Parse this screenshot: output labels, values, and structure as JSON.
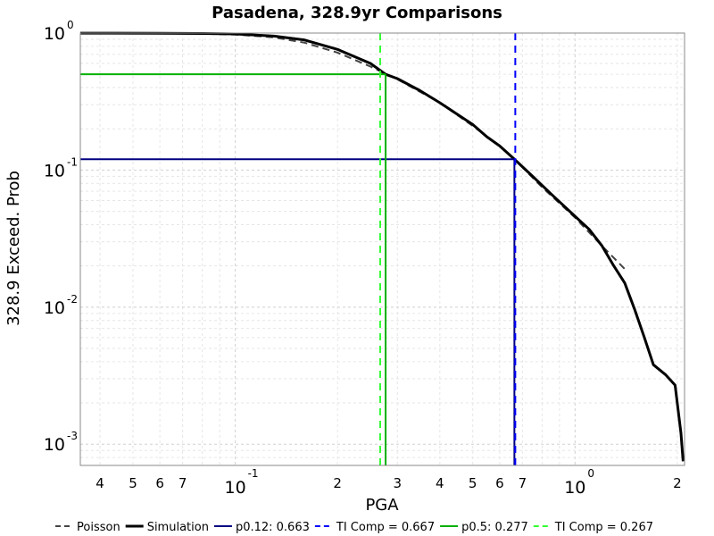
{
  "chart_data": {
    "type": "line",
    "title": "Pasadena, 328.9yr Comparisons",
    "xlabel": "PGA",
    "ylabel": "328.9 Exceed. Prob",
    "xscale": "log",
    "yscale": "log",
    "xlim": [
      0.035,
      2.1
    ],
    "ylim": [
      0.0007,
      1.0
    ],
    "grid": true,
    "legend_position": "bottom",
    "x_tick_labels": [
      {
        "value": 0.04,
        "label": "4"
      },
      {
        "value": 0.05,
        "label": "5"
      },
      {
        "value": 0.06,
        "label": "6"
      },
      {
        "value": 0.07,
        "label": "7"
      },
      {
        "value": 0.1,
        "label": "10",
        "exp": "-1"
      },
      {
        "value": 0.2,
        "label": "2"
      },
      {
        "value": 0.3,
        "label": "3"
      },
      {
        "value": 0.4,
        "label": "4"
      },
      {
        "value": 0.5,
        "label": "5"
      },
      {
        "value": 0.6,
        "label": "6"
      },
      {
        "value": 0.7,
        "label": "7"
      },
      {
        "value": 1.0,
        "label": "10",
        "exp": "0"
      },
      {
        "value": 2.0,
        "label": "2"
      }
    ],
    "y_tick_labels": [
      {
        "value": 1.0,
        "label": "10",
        "exp": "0"
      },
      {
        "value": 0.1,
        "label": "10",
        "exp": "-1"
      },
      {
        "value": 0.01,
        "label": "10",
        "exp": "-2"
      },
      {
        "value": 0.001,
        "label": "10",
        "exp": "-3"
      }
    ],
    "series": [
      {
        "name": "Poisson",
        "color": "#444444",
        "style": "dashed",
        "points": [
          [
            0.035,
            0.999
          ],
          [
            0.06,
            0.996
          ],
          [
            0.08,
            0.99
          ],
          [
            0.1,
            0.975
          ],
          [
            0.13,
            0.93
          ],
          [
            0.16,
            0.85
          ],
          [
            0.2,
            0.72
          ],
          [
            0.25,
            0.57
          ],
          [
            0.3,
            0.46
          ],
          [
            0.4,
            0.31
          ],
          [
            0.5,
            0.21
          ],
          [
            0.6,
            0.15
          ],
          [
            0.663,
            0.12
          ],
          [
            0.8,
            0.075
          ],
          [
            1.0,
            0.045
          ],
          [
            1.2,
            0.028
          ],
          [
            1.4,
            0.019
          ]
        ]
      },
      {
        "name": "Simulation",
        "color": "#000000",
        "style": "solid",
        "points": [
          [
            0.035,
            0.999
          ],
          [
            0.06,
            0.997
          ],
          [
            0.08,
            0.993
          ],
          [
            0.1,
            0.985
          ],
          [
            0.13,
            0.95
          ],
          [
            0.16,
            0.89
          ],
          [
            0.2,
            0.76
          ],
          [
            0.25,
            0.6
          ],
          [
            0.277,
            0.5
          ],
          [
            0.3,
            0.465
          ],
          [
            0.35,
            0.38
          ],
          [
            0.4,
            0.31
          ],
          [
            0.5,
            0.215
          ],
          [
            0.55,
            0.175
          ],
          [
            0.6,
            0.15
          ],
          [
            0.663,
            0.12
          ],
          [
            0.75,
            0.09
          ],
          [
            0.85,
            0.067
          ],
          [
            1.0,
            0.046
          ],
          [
            1.1,
            0.037
          ],
          [
            1.2,
            0.028
          ],
          [
            1.3,
            0.02
          ],
          [
            1.4,
            0.015
          ],
          [
            1.5,
            0.0095
          ],
          [
            1.6,
            0.006
          ],
          [
            1.7,
            0.0038
          ],
          [
            1.85,
            0.0032
          ],
          [
            1.97,
            0.0027
          ],
          [
            2.05,
            0.0012
          ],
          [
            2.08,
            0.00075
          ]
        ]
      }
    ],
    "reference_lines": [
      {
        "name": "p0.12: 0.663",
        "color": "#000080",
        "style": "solid",
        "x": 0.663,
        "y": 0.12
      },
      {
        "name": "TI Comp = 0.667",
        "color": "#0000ff",
        "style": "dashed",
        "x": 0.667
      },
      {
        "name": "p0.5: 0.277",
        "color": "#00b000",
        "style": "solid",
        "x": 0.277,
        "y": 0.5
      },
      {
        "name": "TI Comp = 0.267",
        "color": "#33ff33",
        "style": "dashed",
        "x": 0.267
      }
    ],
    "legend": [
      "Poisson",
      "Simulation",
      "p0.12: 0.663",
      "TI Comp = 0.667",
      "p0.5: 0.277",
      "TI Comp = 0.267"
    ]
  }
}
